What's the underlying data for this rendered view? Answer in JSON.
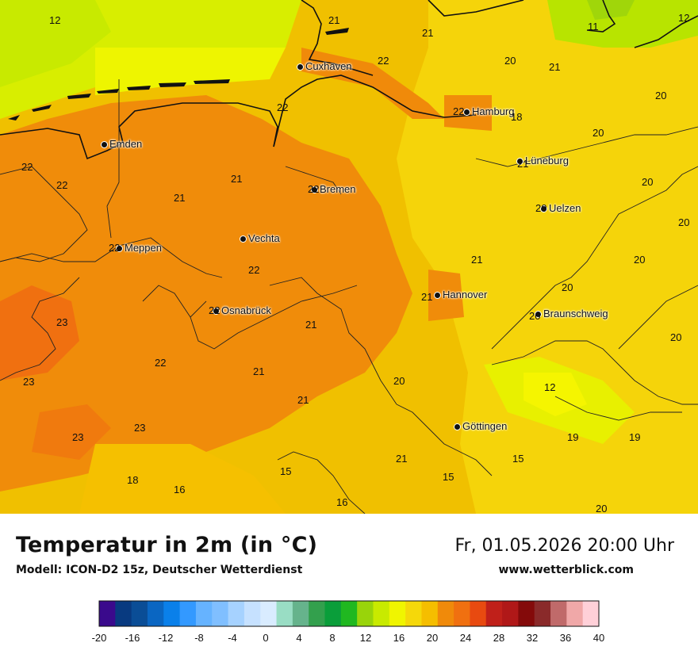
{
  "header": {
    "title": "Temperatur in 2m (in °C)",
    "model": "Modell: ICON-D2 15z, Deutscher Wetterdienst",
    "datetime": "Fr, 01.05.2026 20:00 Uhr",
    "website": "www.wetterblick.com"
  },
  "cities": [
    {
      "name": "Cuxhaven"
    },
    {
      "name": "Hamburg"
    },
    {
      "name": "Emden"
    },
    {
      "name": "Lüneburg"
    },
    {
      "name": "Bremen"
    },
    {
      "name": "Uelzen"
    },
    {
      "name": "Vechta"
    },
    {
      "name": "Meppen"
    },
    {
      "name": "Hannover"
    },
    {
      "name": "Osnabrück"
    },
    {
      "name": "Braunschweig"
    },
    {
      "name": "Göttingen"
    }
  ],
  "temperature_labels": [
    "12",
    "21",
    "21",
    "11",
    "12",
    "22",
    "20",
    "21",
    "22",
    "18",
    "20",
    "20",
    "22",
    "21",
    "22",
    "22",
    "21",
    "21",
    "20",
    "20",
    "22",
    "22",
    "20",
    "20",
    "21",
    "21",
    "20",
    "23",
    "22",
    "21",
    "21",
    "20",
    "12",
    "23",
    "22",
    "20",
    "21",
    "20",
    "22",
    "23",
    "23",
    "21",
    "19",
    "19",
    "15",
    "18",
    "16",
    "15",
    "15",
    "16",
    "20"
  ],
  "legend": {
    "ticks": [
      "-20",
      "-16",
      "-12",
      "-8",
      "-4",
      "0",
      "4",
      "8",
      "12",
      "16",
      "20",
      "24",
      "28",
      "32",
      "36",
      "40"
    ],
    "colors": [
      "#3a0a8c",
      "#083a80",
      "#0a4d96",
      "#0a66c2",
      "#0a80ea",
      "#3399ff",
      "#66b3ff",
      "#80bfff",
      "#a6d2ff",
      "#c6e1ff",
      "#d9ecff",
      "#99ddc4",
      "#66b38c",
      "#33a04d",
      "#0a9e3a",
      "#20b820",
      "#99d40a",
      "#c8ea00",
      "#f0f500",
      "#f5d80a",
      "#f5be00",
      "#f08a0a",
      "#f07010",
      "#e84a10",
      "#c0201a",
      "#b01818",
      "#840a0a",
      "#8a2a2a",
      "#c06a6a",
      "#f0a8a8",
      "#ffd0d8"
    ]
  }
}
